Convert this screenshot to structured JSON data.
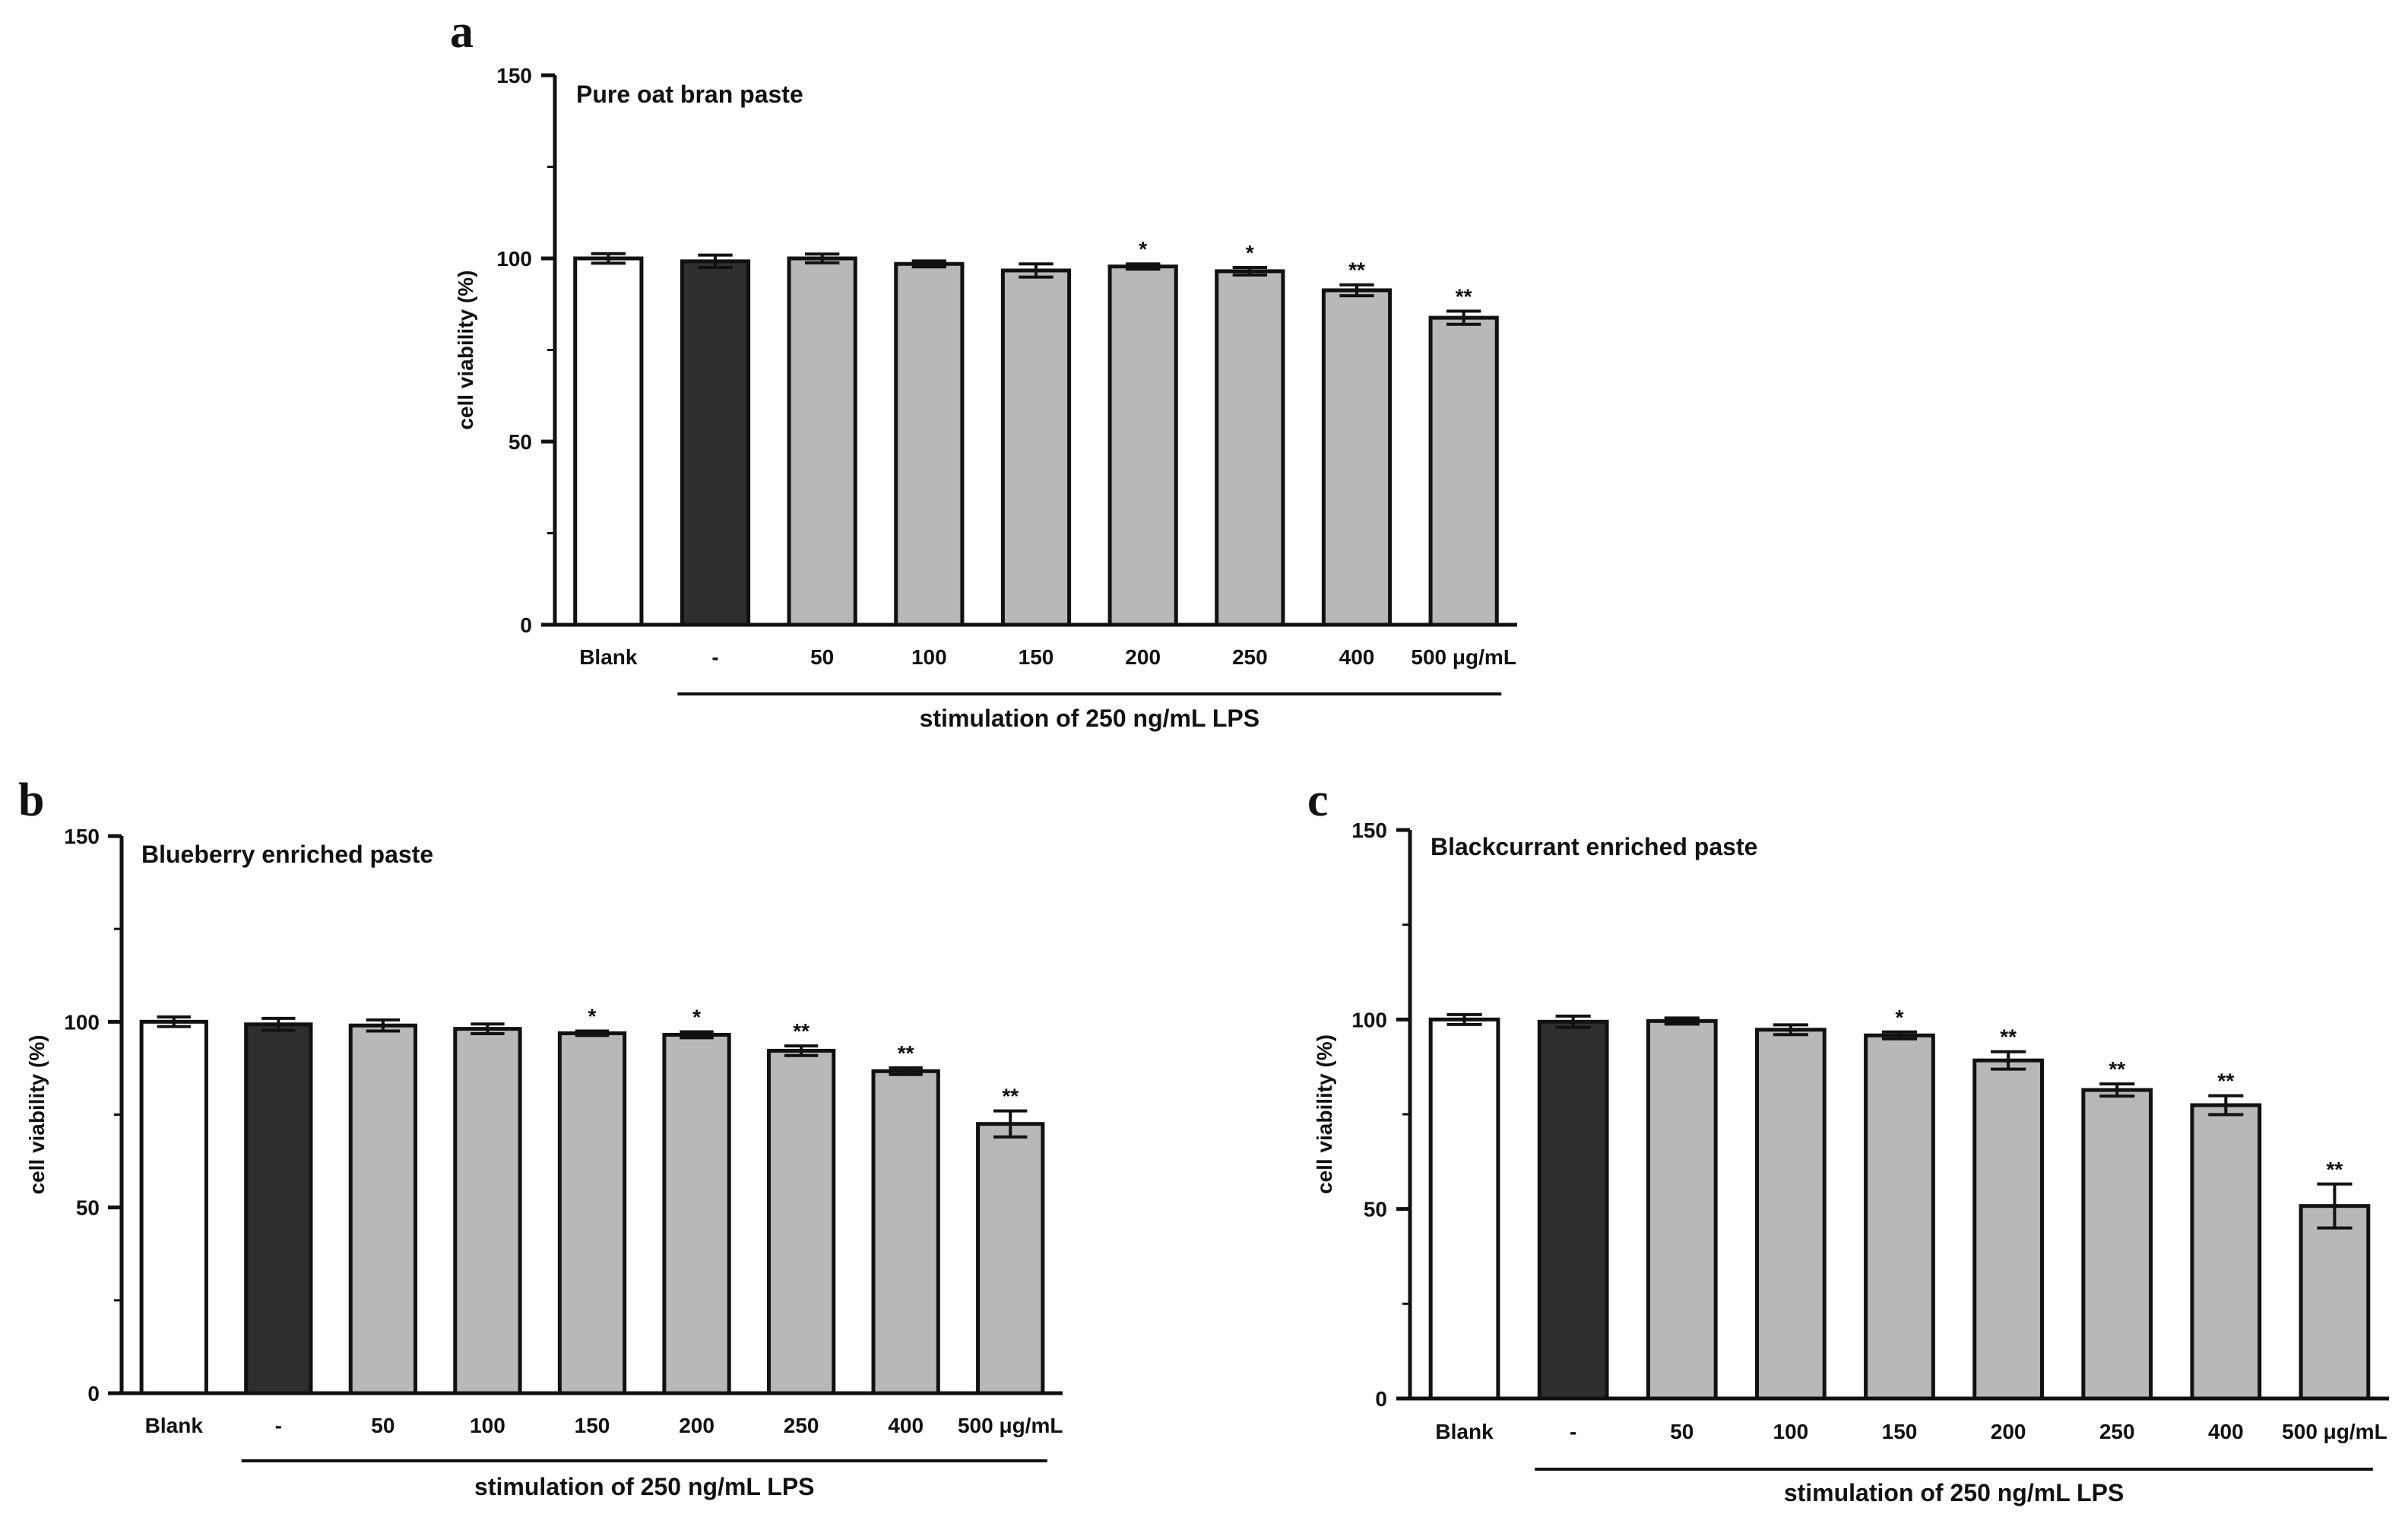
{
  "figure": {
    "panels": [
      "a",
      "b",
      "c"
    ]
  },
  "colors": {
    "blank_fill": "#ffffff",
    "control_fill": "#2e2e2e",
    "treatment_fill": "#b8b8b8",
    "stroke": "#111111"
  },
  "chart_data": [
    {
      "panel": "a",
      "type": "bar",
      "title": "Pure oat bran paste",
      "ylabel": "cell viability (%)",
      "xlabel": "stimulation of 250 ng/mL LPS",
      "ylim": [
        0,
        150
      ],
      "yticks": [
        0,
        50,
        100,
        150
      ],
      "categories": [
        "Blank",
        "-",
        "50",
        "100",
        "150",
        "200",
        "250",
        "400",
        "500 μg/mL"
      ],
      "values": [
        100,
        99.2,
        100,
        98.5,
        96.7,
        97.8,
        96.5,
        91.3,
        83.8
      ],
      "errors": [
        1.3,
        1.7,
        1.2,
        0.8,
        1.8,
        0.7,
        1.0,
        1.5,
        1.8
      ],
      "significance": [
        "",
        "",
        "",
        "",
        "",
        "*",
        "*",
        "**",
        "**"
      ],
      "fill_kinds": [
        "blank",
        "control",
        "treatment",
        "treatment",
        "treatment",
        "treatment",
        "treatment",
        "treatment",
        "treatment"
      ],
      "bracket_from_index": 1,
      "grid": false
    },
    {
      "panel": "b",
      "type": "bar",
      "title": "Blueberry enriched paste",
      "ylabel": "cell viability (%)",
      "xlabel": "stimulation of 250 ng/mL LPS",
      "ylim": [
        0,
        150
      ],
      "yticks": [
        0,
        50,
        100,
        150
      ],
      "categories": [
        "Blank",
        "-",
        "50",
        "100",
        "150",
        "200",
        "250",
        "400",
        "500 μg/mL"
      ],
      "values": [
        100,
        99.3,
        99.0,
        98.1,
        96.9,
        96.5,
        92.2,
        86.7,
        72.5
      ],
      "errors": [
        1.3,
        1.6,
        1.5,
        1.3,
        0.6,
        0.8,
        1.3,
        0.9,
        3.5
      ],
      "significance": [
        "",
        "",
        "",
        "",
        "*",
        "*",
        "**",
        "**",
        "**"
      ],
      "fill_kinds": [
        "blank",
        "control",
        "treatment",
        "treatment",
        "treatment",
        "treatment",
        "treatment",
        "treatment",
        "treatment"
      ],
      "bracket_from_index": 1,
      "grid": false
    },
    {
      "panel": "c",
      "type": "bar",
      "title": "Blackcurrant enriched paste",
      "ylabel": "cell viability (%)",
      "xlabel": "stimulation of 250 ng/mL LPS",
      "ylim": [
        0,
        150
      ],
      "yticks": [
        0,
        50,
        100,
        150
      ],
      "categories": [
        "Blank",
        "-",
        "50",
        "100",
        "150",
        "200",
        "250",
        "400",
        "500 μg/mL"
      ],
      "values": [
        100,
        99.4,
        99.6,
        97.3,
        95.8,
        89.2,
        81.4,
        77.4,
        50.8
      ],
      "errors": [
        1.3,
        1.5,
        0.8,
        1.3,
        0.9,
        2.3,
        1.6,
        2.5,
        5.8
      ],
      "significance": [
        "",
        "",
        "",
        "",
        "*",
        "**",
        "**",
        "**",
        "**"
      ],
      "fill_kinds": [
        "blank",
        "control",
        "treatment",
        "treatment",
        "treatment",
        "treatment",
        "treatment",
        "treatment",
        "treatment"
      ],
      "bracket_from_index": 1,
      "grid": false
    }
  ]
}
